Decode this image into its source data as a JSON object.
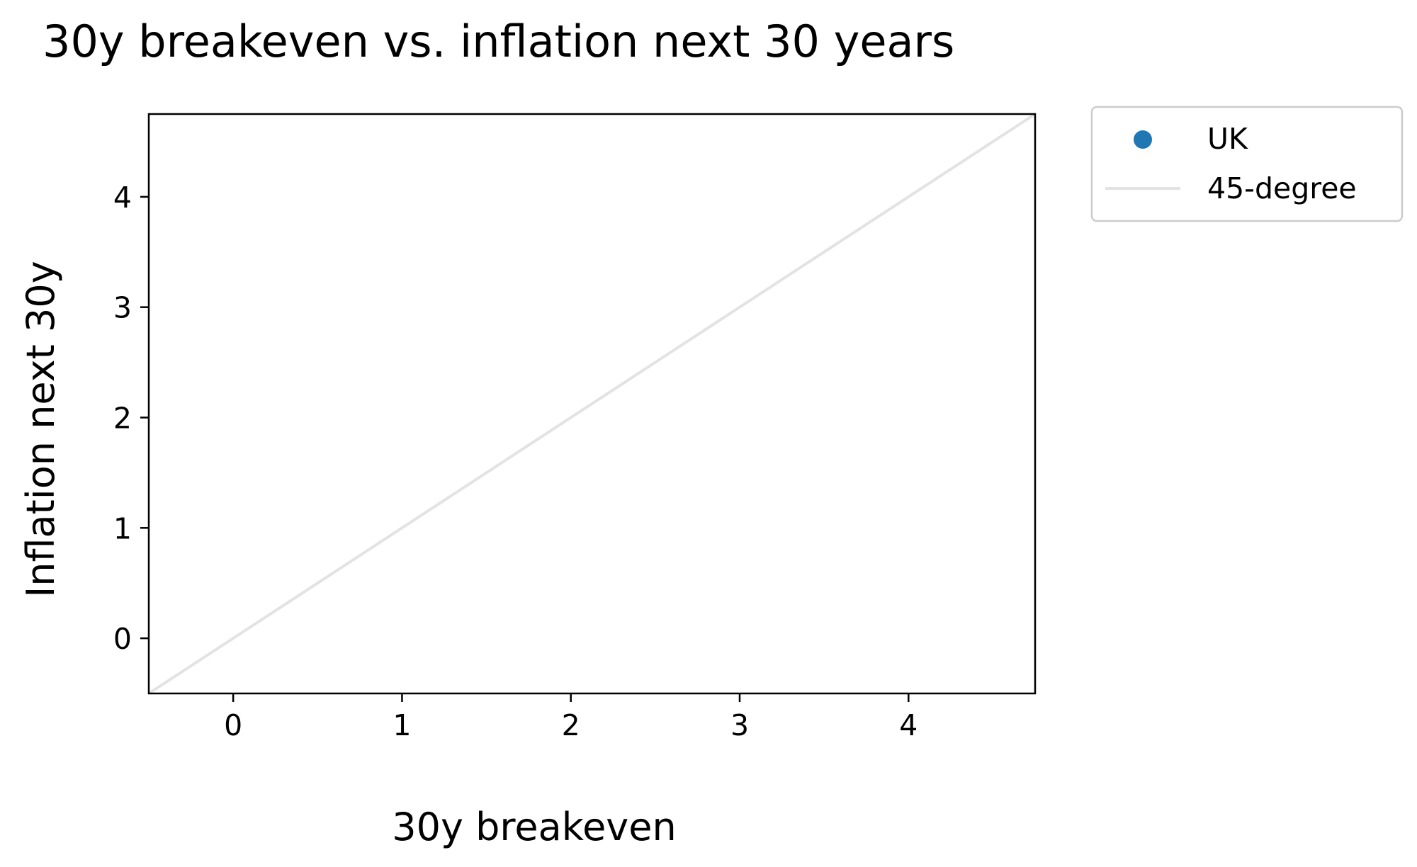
{
  "chart_data": {
    "type": "scatter",
    "title": "30y breakeven vs. inflation next 30 years",
    "xlabel": "30y breakeven",
    "ylabel": "Inflation next 30y",
    "xlim": [
      -0.5,
      4.75
    ],
    "ylim": [
      -0.5,
      4.75
    ],
    "xticks": [
      "0",
      "1",
      "2",
      "3",
      "4"
    ],
    "yticks": [
      "0",
      "1",
      "2",
      "3",
      "4"
    ],
    "grid": false,
    "legend_position": "outside-top-right",
    "series": [
      {
        "name": "UK",
        "kind": "scatter",
        "color": "#1f77b4",
        "points": []
      },
      {
        "name": "45-degree",
        "kind": "line",
        "color": "#e3e3e3",
        "x": [
          -0.5,
          4.75
        ],
        "y": [
          -0.5,
          4.75
        ]
      }
    ]
  }
}
